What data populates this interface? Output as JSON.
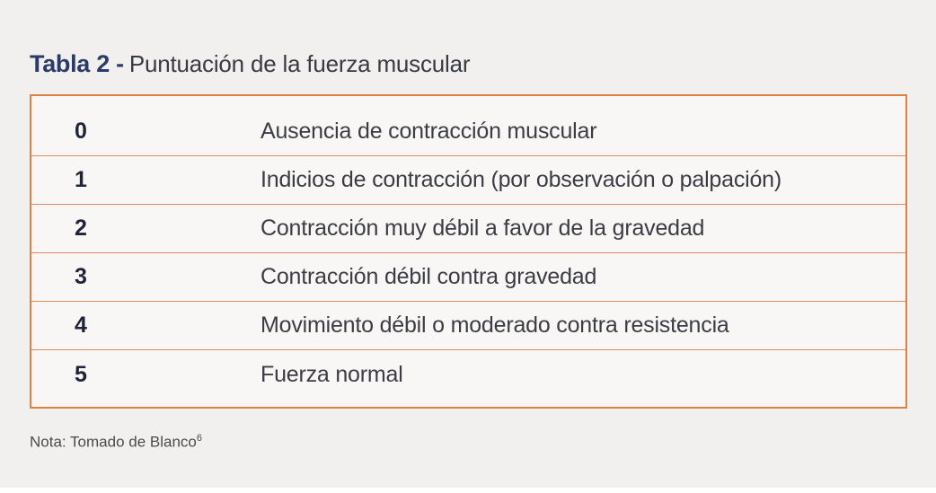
{
  "page": {
    "background_color": "#f1f0ee",
    "accent_color": "#e0813f",
    "title_color": "#2b3a66"
  },
  "title": {
    "bold": "Tabla 2 -",
    "rest": "Puntuación de la fuerza muscular"
  },
  "table": {
    "rows": [
      {
        "score": "0",
        "description": "Ausencia de contracción muscular"
      },
      {
        "score": "1",
        "description": "Indicios de contracción (por observación o palpación)"
      },
      {
        "score": "2",
        "description": "Contracción muy débil a favor de la gravedad"
      },
      {
        "score": "3",
        "description": "Contracción débil contra gravedad"
      },
      {
        "score": "4",
        "description": "Movimiento débil o moderado contra resistencia"
      },
      {
        "score": "5",
        "description": "Fuerza normal"
      }
    ]
  },
  "note": {
    "text": "Nota: Tomado de Blanco",
    "superscript": "6"
  }
}
